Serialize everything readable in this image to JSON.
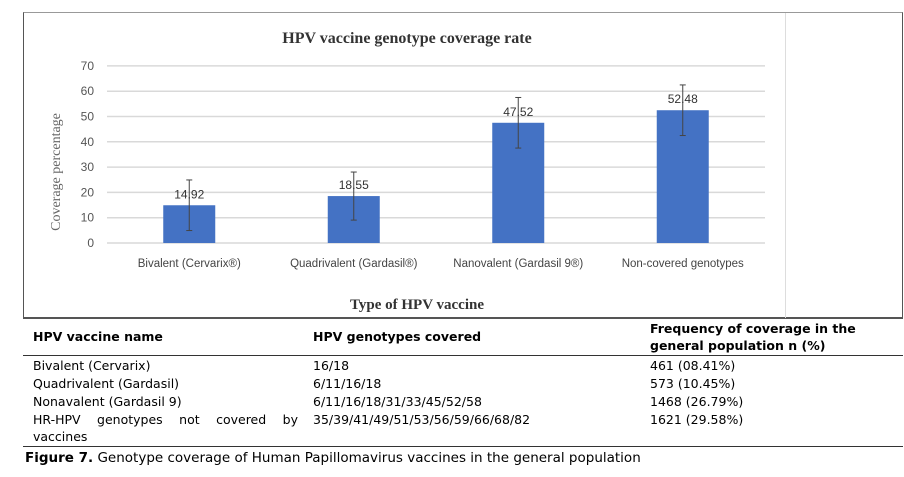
{
  "chart_data": {
    "type": "bar",
    "title": "HPV vaccine genotype coverage rate",
    "xlabel": "Type of HPV vaccine",
    "ylabel": "Coverage percentage",
    "ylim": [
      0,
      70
    ],
    "yticks": [
      0,
      10,
      20,
      30,
      40,
      50,
      60,
      70
    ],
    "grid": true,
    "categories": [
      "Bivalent (Cervarix®)",
      "Quadrivalent (Gardasil®)",
      "Nanovalent (Gardasil 9®)",
      "Non-covered genotypes"
    ],
    "values": [
      14.92,
      18.55,
      47.52,
      52.48
    ],
    "data_labels": [
      "14.92",
      "18.55",
      "47.52",
      "52.48"
    ],
    "error": [
      10,
      9.5,
      10,
      10
    ],
    "bar_color": "#4472C4"
  },
  "table": {
    "headers": [
      "HPV vaccine name",
      "HPV genotypes covered",
      "Frequency of coverage in the general population n (%)"
    ],
    "rows": [
      [
        "Bivalent (Cervarix)",
        "16/18",
        "461 (08.41%)"
      ],
      [
        "Quadrivalent (Gardasil)",
        "6/11/16/18",
        "573 (10.45%)"
      ],
      [
        "Nonavalent (Gardasil 9)",
        "6/11/16/18/31/33/45/52/58",
        "1468 (26.79%)"
      ],
      [
        "HR-HPV genotypes not covered by vaccines",
        "35/39/41/49/51/53/56/59/66/68/82",
        "1621 (29.58%)"
      ]
    ]
  },
  "caption": {
    "label": "Figure 7.",
    "text": " Genotype coverage of Human Papillomavirus vaccines in the general population"
  }
}
